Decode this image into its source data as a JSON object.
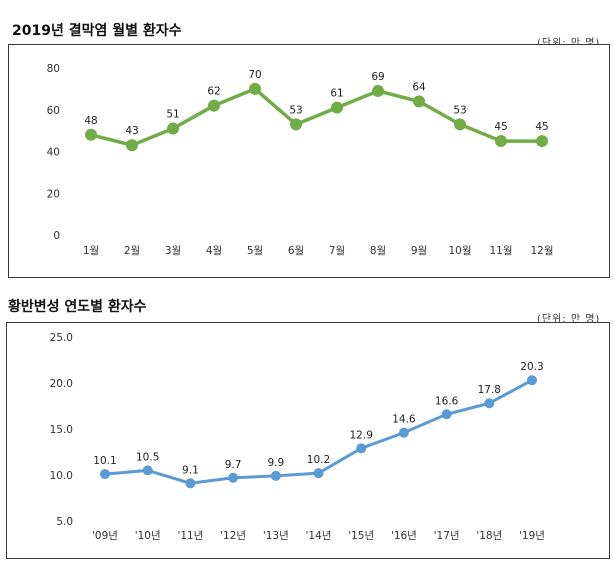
{
  "charts": [
    {
      "title": "2019년 결막염 월별 환자수",
      "unit": "(단위: 만 명)"
    },
    {
      "title": "황반변성 연도별 환자수",
      "unit": "(단위: 만 명)"
    }
  ],
  "chart_data": [
    {
      "type": "line",
      "title": "2019년 결막염 월별 환자수",
      "unit": "(단위: 만 명)",
      "categories": [
        "1월",
        "2월",
        "3월",
        "4월",
        "5월",
        "6월",
        "7월",
        "8월",
        "9월",
        "10월",
        "11월",
        "12월"
      ],
      "values": [
        48,
        43,
        51,
        62,
        70,
        53,
        61,
        69,
        64,
        53,
        45,
        45
      ],
      "data_labels": [
        "48",
        "43",
        "51",
        "62",
        "70",
        "53",
        "61",
        "69",
        "64",
        "53",
        "45",
        "45"
      ],
      "ylim": [
        0,
        80
      ],
      "yticks": [
        "0",
        "20",
        "40",
        "60",
        "80"
      ],
      "color": "#70ad47",
      "grid": false,
      "legend": "none"
    },
    {
      "type": "line",
      "title": "황반변성 연도별 환자수",
      "unit": "(단위: 만 명)",
      "categories": [
        "'09년",
        "'10년",
        "'11년",
        "'12년",
        "'13년",
        "'14년",
        "'15년",
        "'16년",
        "'17년",
        "'18년",
        "'19년"
      ],
      "values": [
        10.1,
        10.5,
        9.1,
        9.7,
        9.9,
        10.2,
        12.9,
        14.6,
        16.6,
        17.8,
        20.3
      ],
      "data_labels": [
        "10.1",
        "10.5",
        "9.1",
        "9.7",
        "9.9",
        "10.2",
        "12.9",
        "14.6",
        "16.6",
        "17.8",
        "20.3"
      ],
      "ylim": [
        5,
        25
      ],
      "yticks": [
        "5.0",
        "10.0",
        "15.0",
        "20.0",
        "25.0"
      ],
      "color": "#5b9bd5",
      "grid": false,
      "legend": "none"
    }
  ]
}
